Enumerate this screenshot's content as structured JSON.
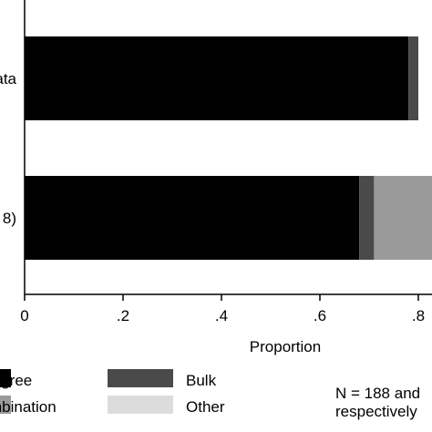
{
  "chart_data": {
    "type": "bar",
    "orientation": "horizontal",
    "stacked": true,
    "categories": [
      "ata",
      "8)"
    ],
    "series": [
      {
        "name": "digree",
        "color": "#000000",
        "values": [
          0.78,
          0.68
        ]
      },
      {
        "name": "Bulk",
        "color": "#4a4a4a",
        "values": [
          0.02,
          0.03
        ]
      },
      {
        "name": "mbination",
        "color": "#9a9a9a",
        "values": [
          0,
          0.29
        ]
      },
      {
        "name": "Other",
        "color": "#dcdcdc",
        "values": [
          0,
          0
        ]
      }
    ],
    "xlabel": "Proportion",
    "xlim": [
      0,
      1
    ],
    "xticks": [
      0,
      0.2,
      0.4,
      0.6,
      0.8
    ],
    "xtick_labels": [
      "0",
      ".2",
      ".4",
      ".6",
      ".8"
    ],
    "grid": false,
    "legend_position": "bottom",
    "legend": [
      {
        "label": "digree",
        "color": "#000000"
      },
      {
        "label": "mbination",
        "color": "#9a9a9a"
      },
      {
        "label": "Bulk",
        "color": "#4a4a4a"
      },
      {
        "label": "Other",
        "color": "#dcdcdc"
      }
    ],
    "note_lines": [
      "N = 188 and",
      "respectively"
    ]
  }
}
